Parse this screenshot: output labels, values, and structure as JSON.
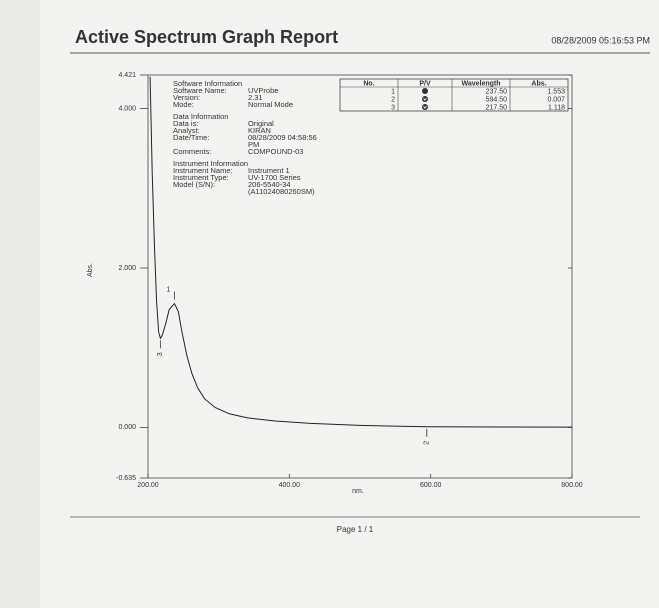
{
  "header": {
    "title": "Active Spectrum Graph Report",
    "datetime": "08/28/2009  05:16:53 PM"
  },
  "chart_data": {
    "type": "line",
    "x_label": "nm.",
    "y_label": "Abs.",
    "x": [
      203,
      206,
      209,
      212,
      215,
      217.5,
      220,
      225,
      230,
      237.5,
      243,
      248,
      255,
      262,
      270,
      280,
      295,
      315,
      340,
      380,
      430,
      500,
      594.5,
      700,
      800
    ],
    "values": [
      4.4,
      3.2,
      2.3,
      1.6,
      1.2,
      1.118,
      1.15,
      1.3,
      1.48,
      1.553,
      1.45,
      1.2,
      0.9,
      0.68,
      0.5,
      0.36,
      0.25,
      0.17,
      0.12,
      0.08,
      0.05,
      0.025,
      0.007,
      0.005,
      0.004
    ],
    "color": "#222222",
    "xlim": [
      200,
      800
    ],
    "ylim": [
      -0.635,
      4.421
    ],
    "xticks": [
      {
        "value": 200,
        "label": "200.00"
      },
      {
        "value": 400,
        "label": "400.00"
      },
      {
        "value": 600,
        "label": "600.00"
      },
      {
        "value": 800,
        "label": "800.00"
      }
    ],
    "yticks": [
      4.421,
      {
        "value": 4,
        "label": "4.000"
      },
      {
        "value": 2,
        "label": "2.000"
      },
      {
        "value": 0,
        "label": "0.000"
      },
      -0.635
    ]
  },
  "info": [
    {
      "title": "Software Information",
      "fields": [
        {
          "label": "Software Name:",
          "value": [
            "UVProbe"
          ]
        },
        {
          "label": "Version:",
          "value": [
            "2.31"
          ]
        },
        {
          "label": "Mode:",
          "value": [
            "Normal Mode"
          ]
        }
      ]
    },
    {
      "title": "Data Information",
      "fields": [
        {
          "label": "Data is:",
          "value": [
            "Original"
          ]
        },
        {
          "label": "Analyst:",
          "value": [
            "KIRAN"
          ]
        },
        {
          "label": "Date/Time:",
          "value": [
            "08/28/2009 04:58:56",
            "PM"
          ]
        },
        {
          "label": "Comments:",
          "value": [
            "COMPOUND-03"
          ]
        }
      ]
    },
    {
      "title": "Instrument Information",
      "fields": [
        {
          "label": "Instrument Name:",
          "value": [
            "Instrument 1"
          ]
        },
        {
          "label": "Instrument Type:",
          "value": [
            "UV-1700 Series"
          ]
        },
        {
          "label": "Model (S/N):",
          "value": [
            "206-5540-34",
            "(A11024080260SM)"
          ]
        }
      ]
    }
  ],
  "peak_table": {
    "columns": [
      "No.",
      "P/V",
      "Wavelength",
      "Abs."
    ],
    "rows": [
      {
        "no": "1",
        "pv": "peak",
        "wavelength": {
          "value": 237.5,
          "label": "237.50"
        },
        "abs": 1.553
      },
      {
        "no": "2",
        "pv": "valley",
        "wavelength": {
          "value": 594.5,
          "label": "594.50"
        },
        "abs": 0.007
      },
      {
        "no": "3",
        "pv": "valley",
        "wavelength": {
          "value": 217.5,
          "label": "217.50"
        },
        "abs": 1.118
      }
    ]
  },
  "footer": {
    "page": "Page 1 / 1"
  }
}
